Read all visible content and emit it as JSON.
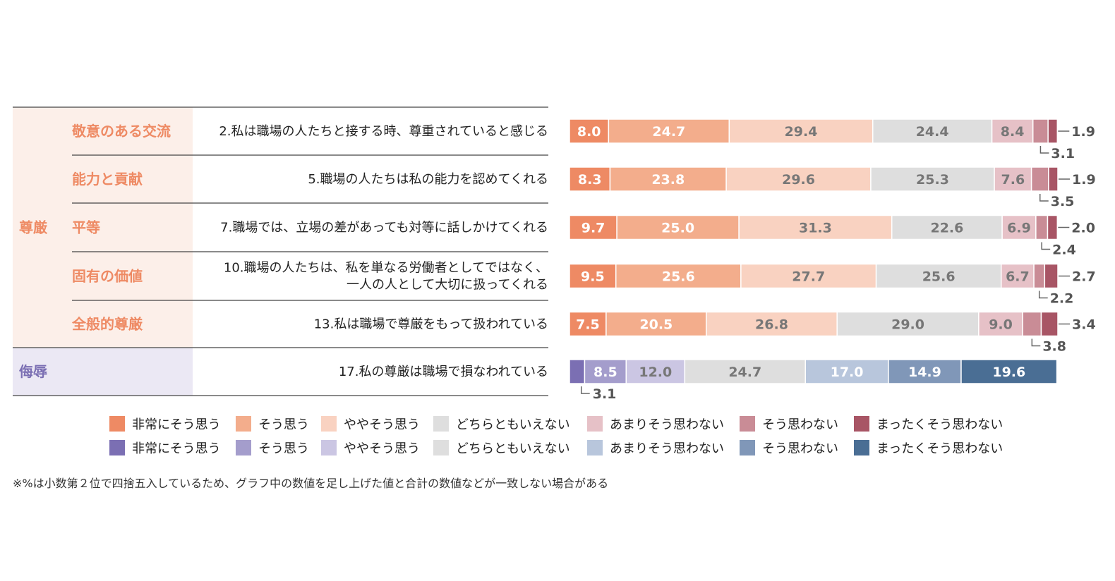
{
  "chart_data": {
    "type": "bar",
    "orientation": "horizontal",
    "stacked": true,
    "percent": true,
    "groups": [
      {
        "id": "dignity",
        "label": "尊厳",
        "color": "#ee8a64",
        "bg": "#fcefe9",
        "palette": "warm",
        "subgroups": [
          "敬意のある交流",
          "能力と貢献",
          "平等",
          "固有の価値",
          "全般的尊厳"
        ]
      },
      {
        "id": "humiliation",
        "label": "侮辱",
        "color": "#7b6fb3",
        "bg": "#ebe8f4",
        "palette": "cool",
        "subgroups": [
          ""
        ]
      }
    ],
    "rows": [
      {
        "group": "dignity",
        "subgroup": "敬意のある交流",
        "question": [
          "2.私は職場の人たちと接する時、尊重されていると感じる"
        ],
        "values": [
          8.0,
          24.7,
          29.4,
          24.4,
          8.4,
          3.1,
          1.9
        ]
      },
      {
        "group": "dignity",
        "subgroup": "能力と貢献",
        "question": [
          "5.職場の人たちは私の能力を認めてくれる"
        ],
        "values": [
          8.3,
          23.8,
          29.6,
          25.3,
          7.6,
          3.5,
          1.9
        ]
      },
      {
        "group": "dignity",
        "subgroup": "平等",
        "question": [
          "7.職場では、立場の差があっても対等に話しかけてくれる"
        ],
        "values": [
          9.7,
          25.0,
          31.3,
          22.6,
          6.9,
          2.4,
          2.0
        ]
      },
      {
        "group": "dignity",
        "subgroup": "固有の価値",
        "question": [
          "10.職場の人たちは、私を単なる労働者としてではなく、",
          "一人の人として大切に扱ってくれる"
        ],
        "values": [
          9.5,
          25.6,
          27.7,
          25.6,
          6.7,
          2.2,
          2.7
        ]
      },
      {
        "group": "dignity",
        "subgroup": "全般的尊厳",
        "question": [
          "13.私は職場で尊厳をもって扱われている"
        ],
        "values": [
          7.5,
          20.5,
          26.8,
          29.0,
          9.0,
          3.8,
          3.4
        ]
      },
      {
        "group": "humiliation",
        "subgroup": "",
        "question": [
          "17.私の尊厳は職場で損なわれている"
        ],
        "values": [
          3.1,
          8.5,
          12.0,
          24.7,
          17.0,
          14.9,
          19.6
        ]
      }
    ],
    "categories": [
      "非常にそう思う",
      "そう思う",
      "ややそう思う",
      "どちらともいえない",
      "あまりそう思わない",
      "そう思わない",
      "まったくそう思わない"
    ],
    "palettes": {
      "warm": [
        "#ee8a64",
        "#f3ad8c",
        "#f9d2c1",
        "#dedede",
        "#e6c1c7",
        "#c98c96",
        "#a85565"
      ],
      "cool": [
        "#7b6fb3",
        "#a49dcc",
        "#cbc6e3",
        "#dedede",
        "#b8c6dc",
        "#8097b8",
        "#4a6e94"
      ]
    },
    "label_colors": {
      "warm": [
        "#ffffff",
        "#ffffff",
        "#777777",
        "#777777",
        "#777777",
        "#ffffff",
        "#ffffff"
      ],
      "cool": [
        "#ffffff",
        "#ffffff",
        "#777777",
        "#777777",
        "#ffffff",
        "#ffffff",
        "#ffffff"
      ]
    },
    "legend": [
      {
        "palette": "warm",
        "labels": [
          "非常にそう思う",
          "そう思う",
          "ややそう思う",
          "どちらともいえない",
          "あまりそう思わない",
          "そう思わない",
          "まったくそう思わない"
        ]
      },
      {
        "palette": "cool",
        "labels": [
          "非常にそう思う",
          "そう思う",
          "ややそう思う",
          "どちらともいえない",
          "あまりそう思わない",
          "そう思わない",
          "まったくそう思わない"
        ]
      }
    ],
    "footnote": "※%は小数第２位で四捨五入しているため、グラフ中の数値を足し上げた値と合計の数値などが一致しない場合がある"
  }
}
